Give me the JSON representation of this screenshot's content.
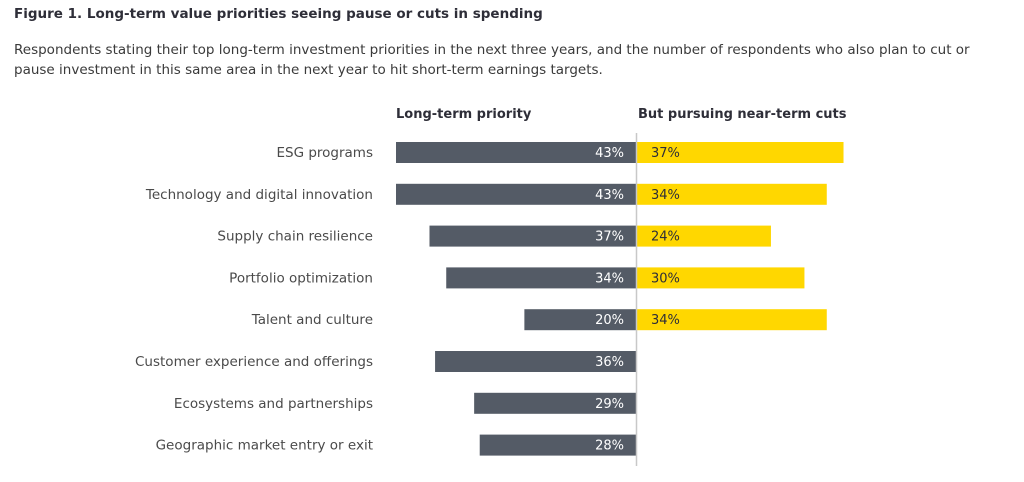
{
  "title": "Figure 1. Long-term value priorities seeing pause or cuts in spending",
  "subtitle": "Respondents stating their top long-term investment priorities in the next three years, and the number of respondents who also plan to cut or pause investment in this same area in the next year to hit short-term earnings targets.",
  "colors": {
    "left_bar": "#545b66",
    "right_bar": "#ffd700",
    "divider": "#c8c8c8"
  },
  "chart_data": {
    "type": "bar",
    "orientation": "horizontal-diverging",
    "categories": [
      "ESG programs",
      "Technology and digital innovation",
      "Supply chain resilience",
      "Portfolio optimization",
      "Talent and culture",
      "Customer experience and offerings",
      "Ecosystems and partnerships",
      "Geographic market entry or exit"
    ],
    "series": [
      {
        "name": "Long-term priority",
        "values": [
          43,
          43,
          37,
          34,
          20,
          36,
          29,
          28
        ]
      },
      {
        "name": "But pursuing near-term cuts",
        "values": [
          37,
          34,
          24,
          30,
          34,
          null,
          null,
          null
        ]
      }
    ],
    "value_labels": {
      "left": [
        "43%",
        "43%",
        "37%",
        "34%",
        "20%",
        "36%",
        "29%",
        "28%"
      ],
      "right": [
        "37%",
        "34%",
        "24%",
        "30%",
        "34%",
        "",
        "",
        ""
      ]
    },
    "unit": "%",
    "grid": false
  }
}
